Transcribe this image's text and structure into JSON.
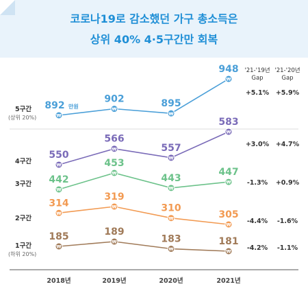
{
  "title": {
    "line1": "코로나19로 감소했던 가구 총소득은",
    "line2": "상위 40% 4·5구간만 회복"
  },
  "colors": {
    "header_bg": "#e9f3fb",
    "title": "#1f8fd6",
    "q5": "#4a9fd8",
    "q4": "#7a6bb8",
    "q3": "#6cc28a",
    "q2": "#f29a52",
    "q1": "#a07a58"
  },
  "chart_data": {
    "type": "line",
    "categories": [
      "2018년",
      "2019년",
      "2020년",
      "2021년"
    ],
    "value_unit_label": "만원",
    "gap_headers": [
      "'21-'19년 Gap",
      "'21-'20년 Gap"
    ],
    "series": [
      {
        "name": "5구간",
        "sublabel": "(상위 20%)",
        "values": [
          892,
          902,
          895,
          948
        ],
        "gaps": [
          "+5.1%",
          "+5.9%"
        ]
      },
      {
        "name": "4구간",
        "sublabel": "",
        "values": [
          550,
          566,
          557,
          583
        ],
        "gaps": [
          "+3.0%",
          "+4.7%"
        ]
      },
      {
        "name": "3구간",
        "sublabel": "",
        "values": [
          442,
          453,
          443,
          447
        ],
        "gaps": [
          "-1.3%",
          "+0.9%"
        ]
      },
      {
        "name": "2구간",
        "sublabel": "",
        "values": [
          314,
          319,
          310,
          305
        ],
        "gaps": [
          "-4.4%",
          "-1.6%"
        ]
      },
      {
        "name": "1구간",
        "sublabel": "(하위 20%)",
        "values": [
          185,
          189,
          183,
          181
        ],
        "gaps": [
          "-4.2%",
          "-1.1%"
        ]
      }
    ],
    "marker_glyph": "₩"
  }
}
